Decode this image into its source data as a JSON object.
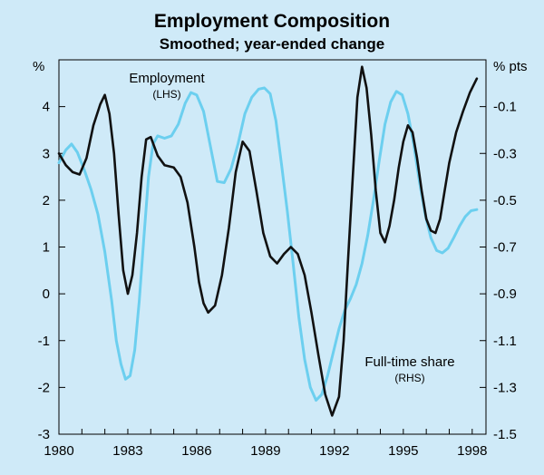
{
  "chart_data": {
    "type": "line",
    "title": "Employment Composition",
    "subtitle": "Smoothed; year-ended change",
    "left_unit": "%",
    "right_unit": "% pts",
    "x_range": [
      1980,
      1998.6
    ],
    "x_ticks": [
      "1980",
      "1983",
      "1986",
      "1989",
      "1992",
      "1995",
      "1998"
    ],
    "left_axis": {
      "range": [
        -3,
        5
      ],
      "ticks": [
        "4",
        "3",
        "2",
        "1",
        "0",
        "-1",
        "-2",
        "-3"
      ]
    },
    "right_axis": {
      "range": [
        -1.5,
        0.1
      ],
      "ticks": [
        "-0.1",
        "-0.3",
        "-0.5",
        "-0.7",
        "-0.9",
        "-1.1",
        "-1.3",
        "-1.5"
      ]
    },
    "grid": false,
    "annotations": [
      {
        "text": "Employment",
        "sub": "(LHS)"
      },
      {
        "text": "Full-time share",
        "sub": "(RHS)"
      }
    ],
    "series": [
      {
        "axis": "left",
        "color": "#111111",
        "points": [
          [
            1980.0,
            3.0
          ],
          [
            1980.3,
            2.75
          ],
          [
            1980.6,
            2.6
          ],
          [
            1980.9,
            2.55
          ],
          [
            1981.2,
            2.9
          ],
          [
            1981.5,
            3.6
          ],
          [
            1981.8,
            4.05
          ],
          [
            1982.0,
            4.25
          ],
          [
            1982.2,
            3.85
          ],
          [
            1982.4,
            3.0
          ],
          [
            1982.6,
            1.7
          ],
          [
            1982.8,
            0.5
          ],
          [
            1983.0,
            0.0
          ],
          [
            1983.2,
            0.4
          ],
          [
            1983.4,
            1.3
          ],
          [
            1983.6,
            2.5
          ],
          [
            1983.8,
            3.3
          ],
          [
            1984.0,
            3.35
          ],
          [
            1984.3,
            2.95
          ],
          [
            1984.6,
            2.75
          ],
          [
            1985.0,
            2.7
          ],
          [
            1985.3,
            2.5
          ],
          [
            1985.6,
            1.95
          ],
          [
            1985.9,
            1.0
          ],
          [
            1986.1,
            0.25
          ],
          [
            1986.3,
            -0.2
          ],
          [
            1986.5,
            -0.4
          ],
          [
            1986.8,
            -0.25
          ],
          [
            1987.1,
            0.4
          ],
          [
            1987.4,
            1.4
          ],
          [
            1987.7,
            2.6
          ],
          [
            1988.0,
            3.25
          ],
          [
            1988.3,
            3.05
          ],
          [
            1988.6,
            2.2
          ],
          [
            1988.9,
            1.3
          ],
          [
            1989.2,
            0.8
          ],
          [
            1989.5,
            0.65
          ],
          [
            1989.8,
            0.85
          ],
          [
            1990.1,
            1.0
          ],
          [
            1990.4,
            0.85
          ],
          [
            1990.7,
            0.4
          ],
          [
            1991.0,
            -0.4
          ],
          [
            1991.3,
            -1.3
          ],
          [
            1991.6,
            -2.15
          ],
          [
            1991.9,
            -2.6
          ],
          [
            1992.2,
            -2.2
          ],
          [
            1992.4,
            -1.0
          ],
          [
            1992.6,
            0.8
          ],
          [
            1992.8,
            2.5
          ],
          [
            1993.0,
            4.2
          ],
          [
            1993.2,
            4.85
          ],
          [
            1993.4,
            4.4
          ],
          [
            1993.6,
            3.4
          ],
          [
            1993.8,
            2.2
          ],
          [
            1994.0,
            1.3
          ],
          [
            1994.2,
            1.1
          ],
          [
            1994.4,
            1.45
          ],
          [
            1994.6,
            2.0
          ],
          [
            1994.8,
            2.7
          ],
          [
            1995.0,
            3.25
          ],
          [
            1995.2,
            3.6
          ],
          [
            1995.4,
            3.45
          ],
          [
            1995.6,
            2.9
          ],
          [
            1995.8,
            2.2
          ],
          [
            1996.0,
            1.6
          ],
          [
            1996.2,
            1.35
          ],
          [
            1996.4,
            1.3
          ],
          [
            1996.6,
            1.6
          ],
          [
            1996.8,
            2.2
          ],
          [
            1997.0,
            2.8
          ],
          [
            1997.3,
            3.45
          ],
          [
            1997.6,
            3.9
          ],
          [
            1997.9,
            4.3
          ],
          [
            1998.2,
            4.6
          ]
        ]
      },
      {
        "axis": "right",
        "color": "#6ccfef",
        "points": [
          [
            1980.0,
            -0.34
          ],
          [
            1980.3,
            -0.285
          ],
          [
            1980.55,
            -0.26
          ],
          [
            1980.8,
            -0.295
          ],
          [
            1981.1,
            -0.37
          ],
          [
            1981.4,
            -0.455
          ],
          [
            1981.7,
            -0.56
          ],
          [
            1982.0,
            -0.72
          ],
          [
            1982.3,
            -0.93
          ],
          [
            1982.5,
            -1.1
          ],
          [
            1982.7,
            -1.2
          ],
          [
            1982.9,
            -1.265
          ],
          [
            1983.1,
            -1.25
          ],
          [
            1983.3,
            -1.14
          ],
          [
            1983.5,
            -0.93
          ],
          [
            1983.7,
            -0.66
          ],
          [
            1983.9,
            -0.4
          ],
          [
            1984.1,
            -0.26
          ],
          [
            1984.3,
            -0.225
          ],
          [
            1984.6,
            -0.235
          ],
          [
            1984.9,
            -0.225
          ],
          [
            1985.2,
            -0.175
          ],
          [
            1985.5,
            -0.085
          ],
          [
            1985.75,
            -0.04
          ],
          [
            1986.0,
            -0.05
          ],
          [
            1986.3,
            -0.12
          ],
          [
            1986.6,
            -0.27
          ],
          [
            1986.9,
            -0.42
          ],
          [
            1987.2,
            -0.425
          ],
          [
            1987.5,
            -0.365
          ],
          [
            1987.8,
            -0.26
          ],
          [
            1988.1,
            -0.13
          ],
          [
            1988.4,
            -0.06
          ],
          [
            1988.7,
            -0.025
          ],
          [
            1988.95,
            -0.02
          ],
          [
            1989.2,
            -0.045
          ],
          [
            1989.45,
            -0.16
          ],
          [
            1989.7,
            -0.35
          ],
          [
            1989.95,
            -0.55
          ],
          [
            1990.2,
            -0.77
          ],
          [
            1990.45,
            -1.0
          ],
          [
            1990.7,
            -1.18
          ],
          [
            1990.95,
            -1.3
          ],
          [
            1991.2,
            -1.355
          ],
          [
            1991.45,
            -1.33
          ],
          [
            1991.7,
            -1.25
          ],
          [
            1991.95,
            -1.15
          ],
          [
            1992.2,
            -1.05
          ],
          [
            1992.45,
            -0.97
          ],
          [
            1992.7,
            -0.92
          ],
          [
            1992.95,
            -0.86
          ],
          [
            1993.2,
            -0.77
          ],
          [
            1993.45,
            -0.65
          ],
          [
            1993.7,
            -0.5
          ],
          [
            1993.95,
            -0.33
          ],
          [
            1994.2,
            -0.175
          ],
          [
            1994.45,
            -0.08
          ],
          [
            1994.7,
            -0.035
          ],
          [
            1994.95,
            -0.05
          ],
          [
            1995.2,
            -0.13
          ],
          [
            1995.45,
            -0.26
          ],
          [
            1995.7,
            -0.42
          ],
          [
            1995.95,
            -0.56
          ],
          [
            1996.2,
            -0.66
          ],
          [
            1996.45,
            -0.715
          ],
          [
            1996.7,
            -0.725
          ],
          [
            1996.95,
            -0.705
          ],
          [
            1997.2,
            -0.66
          ],
          [
            1997.45,
            -0.61
          ],
          [
            1997.7,
            -0.57
          ],
          [
            1997.95,
            -0.545
          ],
          [
            1998.2,
            -0.54
          ]
        ]
      }
    ]
  }
}
